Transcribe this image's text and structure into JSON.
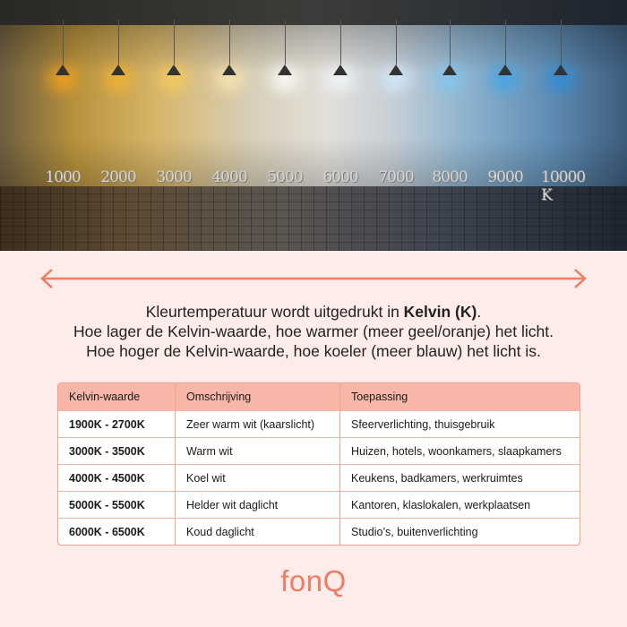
{
  "hero": {
    "lamp_colors": [
      "#f6a21a",
      "#f8b52a",
      "#f9cd5a",
      "#fbe7b0",
      "#ffffff",
      "#f4f8ff",
      "#d6ecff",
      "#7fc8f4",
      "#3ba8ec",
      "#2b8ede"
    ],
    "kelvin_labels": [
      "1000",
      "2000",
      "3000",
      "4000",
      "5000",
      "6000",
      "7000",
      "8000",
      "9000",
      "10000 K"
    ]
  },
  "arrow_color": "#ee7d63",
  "intro": {
    "line1_prefix": "Kleurtemperatuur wordt uitgedrukt in ",
    "line1_bold": "Kelvin (K)",
    "line1_suffix": ".",
    "line2": "Hoe lager de Kelvin-waarde, hoe warmer (meer geel/oranje) het licht.",
    "line3": "Hoe hoger de Kelvin-waarde, hoe koeler (meer blauw) het licht is."
  },
  "table": {
    "headers": [
      "Kelvin-waarde",
      "Omschrijving",
      "Toepassing"
    ],
    "rows": [
      [
        "1900K - 2700K",
        "Zeer warm wit (kaarslicht)",
        "Sfeerverlichting, thuisgebruik"
      ],
      [
        "3000K - 3500K",
        "Warm wit",
        "Huizen, hotels, woonkamers, slaapkamers"
      ],
      [
        "4000K - 4500K",
        "Koel wit",
        "Keukens, badkamers, werkruimtes"
      ],
      [
        "5000K - 5500K",
        "Helder wit daglicht",
        "Kantoren, klaslokalen, werkplaatsen"
      ],
      [
        "6000K - 6500K",
        "Koud daglicht",
        "Studio’s, buitenverlichting"
      ]
    ]
  },
  "logo": "fonQ"
}
